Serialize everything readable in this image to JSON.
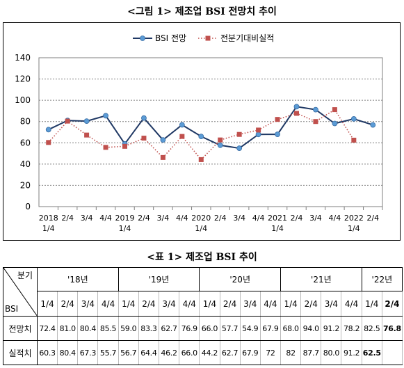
{
  "figure_title": "<그림 1> 제조업 BSI 전망치 추이",
  "table_title": "<표 1> 제조업 BSI 추이",
  "colors": {
    "forecast": "#1f3864",
    "forecast_marker": "#5b9bd5",
    "actual": "#c0504d",
    "grid": "#808080"
  },
  "chart_data": {
    "type": "line",
    "title": "",
    "ylim": [
      0,
      140
    ],
    "yticks": [
      0,
      20,
      40,
      60,
      80,
      100,
      120,
      140
    ],
    "grid": true,
    "legend_position": "top-center",
    "categories": [
      [
        "2018",
        "1/4"
      ],
      [
        "2/4"
      ],
      [
        "3/4"
      ],
      [
        "4/4"
      ],
      [
        "2019",
        "1/4"
      ],
      [
        "2/4"
      ],
      [
        "3/4"
      ],
      [
        "4/4"
      ],
      [
        "2020",
        "1/4"
      ],
      [
        "2/4"
      ],
      [
        "3/4"
      ],
      [
        "4/4"
      ],
      [
        "2021",
        "1/4"
      ],
      [
        "2/4"
      ],
      [
        "3/4"
      ],
      [
        "4/4"
      ],
      [
        "2022",
        "1/4"
      ],
      [
        "2/4"
      ]
    ],
    "series": [
      {
        "name": "BSI 전망",
        "style": "solid-circle",
        "values": [
          72.4,
          81.0,
          80.4,
          85.5,
          59.0,
          83.3,
          62.7,
          76.9,
          66.0,
          57.7,
          54.9,
          67.9,
          68.0,
          94.0,
          91.2,
          78.2,
          82.5,
          76.8
        ]
      },
      {
        "name": "전분기대비실적",
        "style": "dotted-square",
        "values": [
          60.3,
          80.4,
          67.3,
          55.7,
          56.7,
          64.4,
          46.2,
          66.0,
          44.2,
          62.7,
          67.9,
          72,
          82,
          87.7,
          80.0,
          91.2,
          62.5,
          null
        ]
      }
    ]
  },
  "table": {
    "corner_top": "분기",
    "corner_bottom": "BSI",
    "years": [
      "'18년",
      "'19년",
      "'20년",
      "'21년",
      "'22년"
    ],
    "quarters": [
      "1/4",
      "2/4",
      "3/4",
      "4/4",
      "1/4",
      "2/4",
      "3/4",
      "4/4",
      "1/4",
      "2/4",
      "3/4",
      "4/4",
      "1/4",
      "2/4",
      "3/4",
      "4/4",
      "1/4",
      "2/4"
    ],
    "rows": [
      {
        "label": "전망치",
        "values": [
          "72.4",
          "81.0",
          "80.4",
          "85.5",
          "59.0",
          "83.3",
          "62.7",
          "76.9",
          "66.0",
          "57.7",
          "54.9",
          "67.9",
          "68.0",
          "94.0",
          "91.2",
          "78.2",
          "82.5",
          "76.8"
        ]
      },
      {
        "label": "실적치",
        "values": [
          "60.3",
          "80.4",
          "67.3",
          "55.7",
          "56.7",
          "64.4",
          "46.2",
          "66.0",
          "44.2",
          "62.7",
          "67.9",
          "72",
          "82",
          "87.7",
          "80.0",
          "91.2",
          "62.5",
          ""
        ]
      }
    ]
  }
}
